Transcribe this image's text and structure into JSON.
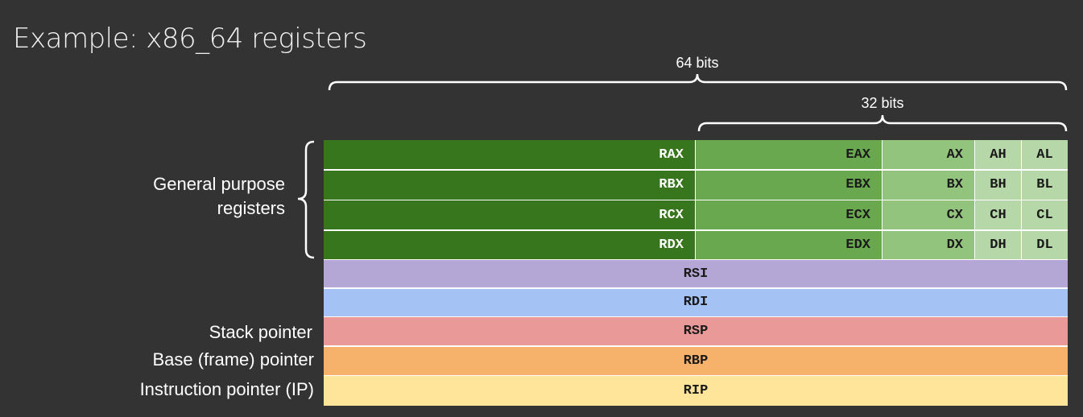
{
  "title": "Example: x86_64 registers",
  "bits64_label": "64 bits",
  "bits32_label": "32 bits",
  "general_purpose_label_line1": "General purpose",
  "general_purpose_label_line2": "registers",
  "stack_pointer_label": "Stack pointer",
  "base_pointer_label": "Base (frame) pointer",
  "instruction_pointer_label": "Instruction pointer (IP)",
  "gp_registers": [
    {
      "r64": "RAX",
      "r32": "EAX",
      "r16": "AX",
      "r8h": "AH",
      "r8l": "AL"
    },
    {
      "r64": "RBX",
      "r32": "EBX",
      "r16": "BX",
      "r8h": "BH",
      "r8l": "BL"
    },
    {
      "r64": "RCX",
      "r32": "ECX",
      "r16": "CX",
      "r8h": "CH",
      "r8l": "CL"
    },
    {
      "r64": "RDX",
      "r32": "EDX",
      "r16": "DX",
      "r8h": "DH",
      "r8l": "DL"
    }
  ],
  "other_registers": [
    {
      "name": "RSI",
      "color": "#b4a7d6"
    },
    {
      "name": "RDI",
      "color": "#a4c2f4"
    },
    {
      "name": "RSP",
      "color": "#ea9999"
    },
    {
      "name": "RBP",
      "color": "#f6b26b"
    },
    {
      "name": "RIP",
      "color": "#ffe599"
    }
  ]
}
